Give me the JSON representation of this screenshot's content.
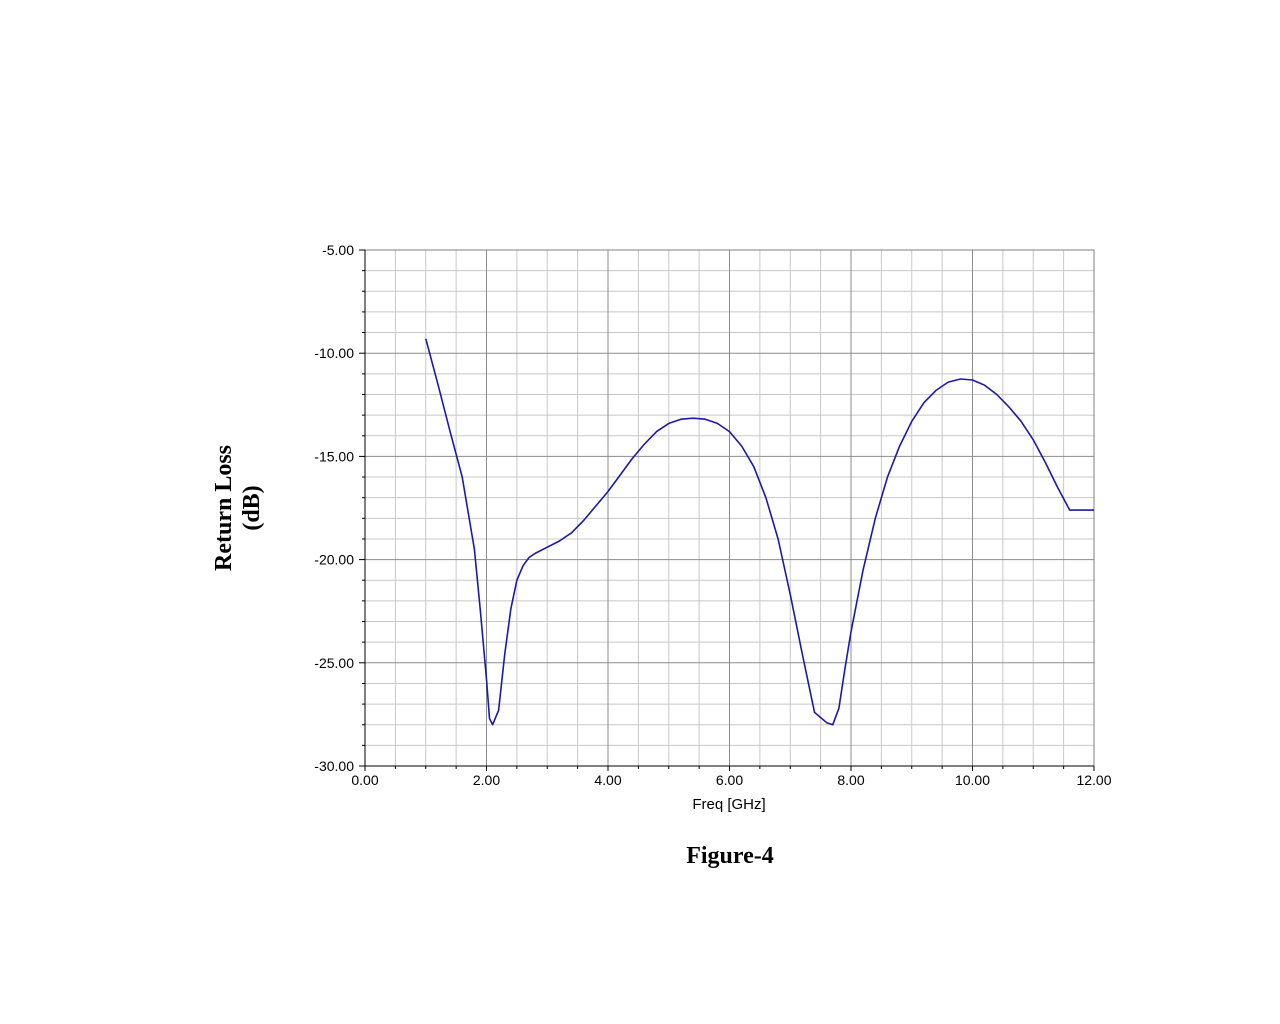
{
  "chart_data": {
    "type": "line",
    "xlabel": "Freq [GHz]",
    "ylabel_lines": [
      "Return Loss",
      "(dB)"
    ],
    "xlim": [
      0,
      12
    ],
    "ylim": [
      -30,
      -5
    ],
    "x_ticks": [
      "0.00",
      "2.00",
      "4.00",
      "6.00",
      "8.00",
      "10.00",
      "12.00"
    ],
    "y_ticks": [
      "-5.00",
      "-10.00",
      "-15.00",
      "-20.00",
      "-25.00",
      "-30.00"
    ],
    "grid": true,
    "series": [
      {
        "color": "#1a1aa6",
        "x": [
          1.0,
          1.2,
          1.4,
          1.6,
          1.8,
          1.9,
          2.0,
          2.05,
          2.1,
          2.2,
          2.3,
          2.4,
          2.5,
          2.6,
          2.7,
          2.8,
          3.0,
          3.2,
          3.4,
          3.6,
          3.8,
          4.0,
          4.2,
          4.4,
          4.6,
          4.8,
          5.0,
          5.2,
          5.4,
          5.6,
          5.8,
          6.0,
          6.2,
          6.4,
          6.6,
          6.8,
          7.0,
          7.2,
          7.4,
          7.6,
          7.7,
          7.8,
          7.9,
          8.0,
          8.2,
          8.4,
          8.6,
          8.8,
          9.0,
          9.2,
          9.4,
          9.6,
          9.8,
          10.0,
          10.2,
          10.4,
          10.6,
          10.8,
          11.0,
          11.2,
          11.4,
          11.6,
          11.8,
          12.0
        ],
        "y": [
          -9.3,
          -11.5,
          -13.8,
          -16.0,
          -19.5,
          -22.5,
          -25.8,
          -27.7,
          -28.0,
          -27.3,
          -24.6,
          -22.4,
          -21.0,
          -20.3,
          -19.9,
          -19.7,
          -19.4,
          -19.1,
          -18.7,
          -18.1,
          -17.4,
          -16.7,
          -15.9,
          -15.1,
          -14.4,
          -13.8,
          -13.4,
          -13.2,
          -13.15,
          -13.2,
          -13.4,
          -13.8,
          -14.5,
          -15.5,
          -17.0,
          -19.0,
          -21.7,
          -24.6,
          -27.4,
          -27.9,
          -28.0,
          -27.2,
          -25.3,
          -23.5,
          -20.5,
          -18.0,
          -16.0,
          -14.5,
          -13.3,
          -12.4,
          -11.8,
          -11.4,
          -11.25,
          -11.3,
          -11.55,
          -12.0,
          -12.6,
          -13.3,
          -14.2,
          -15.3,
          -16.5,
          -17.6,
          -17.6,
          -17.6
        ]
      }
    ]
  },
  "figure": {
    "caption": "Figure-4"
  }
}
